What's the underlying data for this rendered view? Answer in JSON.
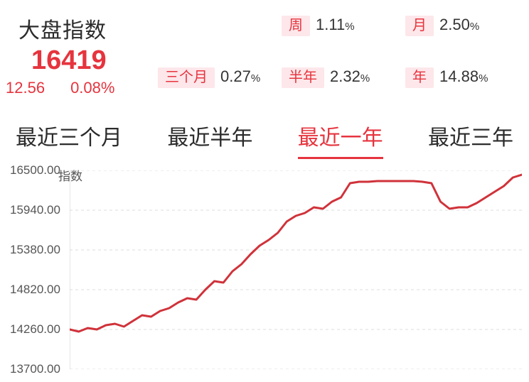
{
  "header": {
    "title": "大盘指数",
    "value": "16419",
    "change_abs": "12.56",
    "change_pct": "0.08%",
    "value_color": "#e6343e"
  },
  "periods": {
    "row1": [
      {
        "tag": "周",
        "value": "1.11",
        "unit": "%"
      },
      {
        "tag": "月",
        "value": "2.50",
        "unit": "%"
      }
    ],
    "row2": [
      {
        "tag": "三个月",
        "value": "0.27",
        "unit": "%"
      },
      {
        "tag": "半年",
        "value": "2.32",
        "unit": "%"
      },
      {
        "tag": "年",
        "value": "14.88",
        "unit": "%"
      }
    ],
    "tag_bg": "#fde7ea",
    "tag_color": "#e6343e"
  },
  "tabs": {
    "items": [
      "最近三个月",
      "最近半年",
      "最近一年",
      "最近三年"
    ],
    "active_index": 2,
    "active_color": "#e6343e"
  },
  "chart": {
    "type": "line",
    "axis_title": "指数",
    "y_axis": {
      "ticks": [
        16500.0,
        15940.0,
        15380.0,
        14820.0,
        14260.0,
        13700.0
      ],
      "fontsize": 17,
      "color": "#555555"
    },
    "ylim": [
      13700,
      16500
    ],
    "xlim": [
      0,
      100
    ],
    "grid_color": "#dcdcdc",
    "grid_dash": "4 4",
    "background_color": "#ffffff",
    "series_color": "#d0323a",
    "line_width": 3,
    "data": [
      [
        0,
        14260
      ],
      [
        2,
        14230
      ],
      [
        4,
        14280
      ],
      [
        6,
        14260
      ],
      [
        8,
        14320
      ],
      [
        10,
        14340
      ],
      [
        12,
        14300
      ],
      [
        14,
        14380
      ],
      [
        16,
        14460
      ],
      [
        18,
        14440
      ],
      [
        20,
        14520
      ],
      [
        22,
        14560
      ],
      [
        24,
        14640
      ],
      [
        26,
        14700
      ],
      [
        28,
        14680
      ],
      [
        30,
        14820
      ],
      [
        32,
        14940
      ],
      [
        34,
        14920
      ],
      [
        36,
        15080
      ],
      [
        38,
        15180
      ],
      [
        40,
        15320
      ],
      [
        42,
        15440
      ],
      [
        44,
        15520
      ],
      [
        46,
        15620
      ],
      [
        48,
        15780
      ],
      [
        50,
        15860
      ],
      [
        52,
        15900
      ],
      [
        54,
        15980
      ],
      [
        56,
        15960
      ],
      [
        58,
        16060
      ],
      [
        60,
        16120
      ],
      [
        62,
        16320
      ],
      [
        64,
        16340
      ],
      [
        66,
        16340
      ],
      [
        68,
        16350
      ],
      [
        70,
        16350
      ],
      [
        72,
        16350
      ],
      [
        74,
        16350
      ],
      [
        76,
        16350
      ],
      [
        78,
        16340
      ],
      [
        80,
        16320
      ],
      [
        82,
        16060
      ],
      [
        84,
        15960
      ],
      [
        86,
        15980
      ],
      [
        88,
        15980
      ],
      [
        90,
        16040
      ],
      [
        92,
        16120
      ],
      [
        94,
        16200
      ],
      [
        96,
        16280
      ],
      [
        98,
        16400
      ],
      [
        100,
        16440
      ]
    ]
  }
}
